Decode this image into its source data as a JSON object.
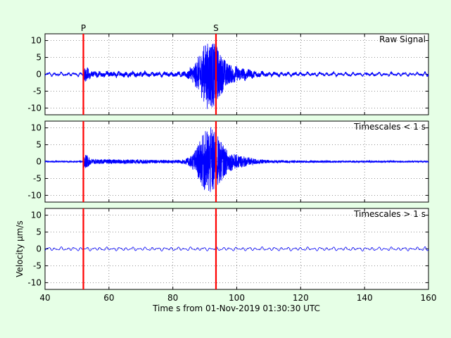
{
  "chart_data": [
    {
      "type": "line",
      "panel_label": "Raw Signal",
      "xlim": [
        40,
        160
      ],
      "ylim": [
        -12,
        12
      ],
      "yticks": [
        -10,
        -5,
        0,
        5,
        10
      ],
      "grid": true,
      "series": [
        {
          "kind": "raw",
          "color": "#0000ff",
          "amplitude": 10
        }
      ],
      "annotations": [
        {
          "label": "P",
          "x": 52,
          "color": "#ff0000"
        },
        {
          "label": "S",
          "x": 93.5,
          "color": "#ff0000"
        }
      ]
    },
    {
      "type": "line",
      "panel_label": "Timescales < 1 s",
      "xlim": [
        40,
        160
      ],
      "ylim": [
        -12,
        12
      ],
      "yticks": [
        -10,
        -5,
        0,
        5,
        10
      ],
      "grid": true,
      "series": [
        {
          "kind": "high",
          "color": "#0000ff",
          "amplitude": 10
        }
      ],
      "annotations": [
        {
          "x": 52,
          "color": "#ff0000"
        },
        {
          "x": 93.5,
          "color": "#ff0000"
        }
      ]
    },
    {
      "type": "line",
      "panel_label": "Timescales > 1 s",
      "xlim": [
        40,
        160
      ],
      "ylim": [
        -12,
        12
      ],
      "yticks": [
        -10,
        -5,
        0,
        5,
        10
      ],
      "xticks": [
        40,
        60,
        80,
        100,
        120,
        140,
        160
      ],
      "grid": true,
      "ylabel": "Velocity μm/s",
      "series": [
        {
          "kind": "low",
          "color": "#0000ff",
          "amplitude": 0.7
        }
      ],
      "annotations": [
        {
          "x": 52,
          "color": "#ff0000"
        },
        {
          "x": 93.5,
          "color": "#ff0000"
        }
      ]
    }
  ],
  "xlabel": "Time s from 01-Nov-2019 01:30:30 UTC",
  "background": "#e6ffe6"
}
